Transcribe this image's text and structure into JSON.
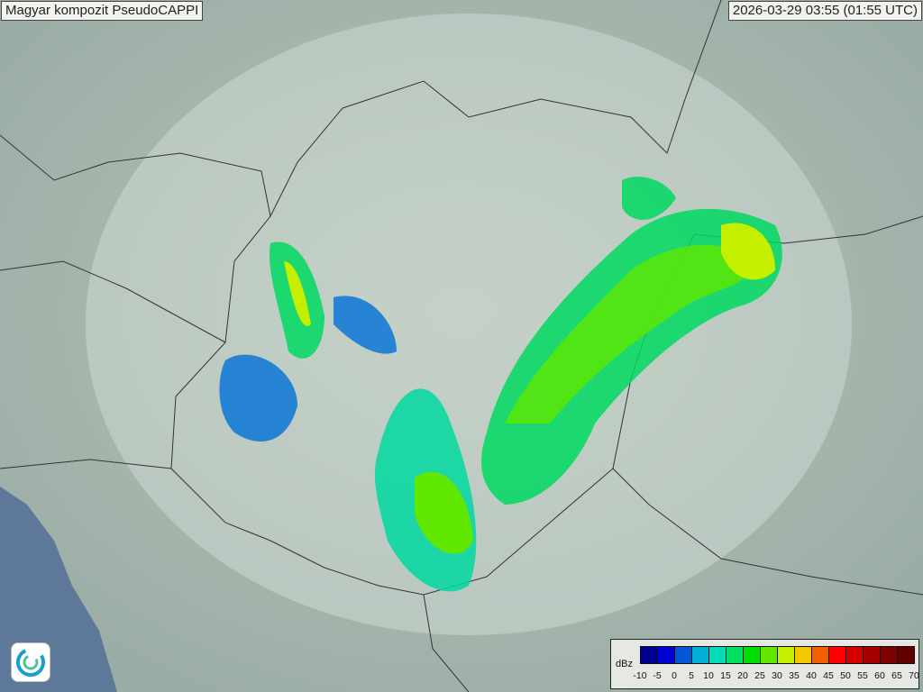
{
  "title": "Magyar kompozit  PseudoCAPPI",
  "timestamp": "2026-03-29 03:55 (01:55 UTC)",
  "legend": {
    "unit": "dBz",
    "ticks": [
      "-10",
      "-5",
      "0",
      "5",
      "10",
      "15",
      "20",
      "25",
      "30",
      "35",
      "40",
      "45",
      "50",
      "55",
      "60",
      "65",
      "70"
    ],
    "colors": [
      "#000090",
      "#0000d0",
      "#0058d8",
      "#00b0d8",
      "#00dcb8",
      "#00e060",
      "#00e000",
      "#60e800",
      "#c4f000",
      "#f4c800",
      "#f46000",
      "#ff0000",
      "#d40000",
      "#a80000",
      "#800000",
      "#600000"
    ]
  },
  "logo": {
    "icon": "omsz-logo-icon"
  },
  "map": {
    "background": "#a4b4aa",
    "radar_coverage": "#d4dcd8"
  }
}
